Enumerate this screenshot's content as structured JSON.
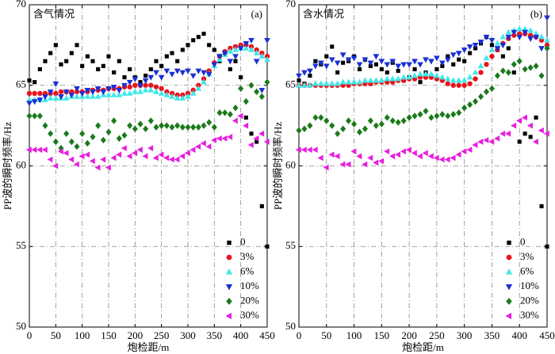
{
  "chart_data": [
    {
      "type": "scatter",
      "annotation": "含气情况",
      "panel_label": "(a)",
      "xlabel": "炮检距/m",
      "ylabel": "PP波的瞬时频率/Hz",
      "x": [
        0,
        10,
        20,
        30,
        40,
        50,
        60,
        70,
        80,
        90,
        100,
        110,
        120,
        130,
        140,
        150,
        160,
        170,
        180,
        190,
        200,
        210,
        220,
        230,
        240,
        250,
        260,
        270,
        280,
        290,
        300,
        310,
        320,
        330,
        340,
        350,
        360,
        370,
        380,
        390,
        400,
        410,
        420,
        430,
        440,
        450
      ],
      "xlim": [
        0,
        450
      ],
      "xticks": [
        0,
        50,
        100,
        150,
        200,
        250,
        300,
        350,
        400,
        450
      ],
      "ylim": [
        50,
        70
      ],
      "yticks": [
        50,
        55,
        60,
        65,
        70
      ],
      "grid": true,
      "legend": "lower right",
      "series": [
        {
          "name": "0",
          "color": "#000000",
          "marker": "square",
          "values": [
            65.3,
            65.2,
            66.0,
            66.5,
            67.0,
            67.5,
            66.3,
            66.5,
            67.0,
            67.5,
            66.2,
            66.8,
            66.5,
            66.0,
            66.2,
            66.8,
            65.8,
            66.5,
            65.5,
            66.0,
            65.5,
            65.2,
            65.6,
            66.0,
            66.5,
            66.2,
            66.8,
            67.0,
            66.5,
            67.2,
            67.5,
            67.8,
            68.0,
            68.2,
            67.5,
            67.2,
            66.5,
            67.0,
            66.0,
            66.5,
            65.5,
            63.0,
            62.0,
            61.5,
            57.5,
            55.0
          ]
        },
        {
          "name": "3%",
          "color": "#e8141c",
          "marker": "circle",
          "values": [
            64.5,
            64.5,
            64.5,
            64.5,
            64.5,
            64.5,
            64.6,
            64.6,
            64.6,
            64.6,
            64.6,
            64.6,
            64.7,
            64.7,
            64.7,
            64.8,
            64.8,
            64.8,
            64.9,
            64.9,
            65.0,
            65.0,
            65.0,
            65.0,
            64.9,
            64.8,
            64.6,
            64.5,
            64.4,
            64.4,
            64.5,
            64.7,
            65.0,
            65.4,
            65.9,
            66.4,
            66.8,
            67.1,
            67.3,
            67.4,
            67.5,
            67.5,
            67.4,
            67.2,
            67.0,
            66.8
          ]
        },
        {
          "name": "6%",
          "color": "#3fe8e8",
          "marker": "triangle-up",
          "values": [
            64.1,
            64.1,
            64.1,
            64.1,
            64.2,
            64.2,
            64.2,
            64.2,
            64.3,
            64.3,
            64.3,
            64.3,
            64.3,
            64.3,
            64.4,
            64.4,
            64.4,
            64.4,
            64.5,
            64.5,
            64.6,
            64.6,
            64.7,
            64.7,
            64.6,
            64.5,
            64.4,
            64.3,
            64.2,
            64.2,
            64.3,
            64.5,
            64.8,
            65.2,
            65.7,
            66.2,
            66.6,
            66.9,
            67.1,
            67.2,
            67.3,
            67.3,
            67.2,
            67.0,
            66.8,
            66.6
          ]
        },
        {
          "name": "10%",
          "color": "#1a2fd6",
          "marker": "triangle-down",
          "values": [
            63.9,
            64.0,
            64.1,
            64.3,
            64.6,
            65.1,
            64.3,
            64.6,
            64.4,
            64.8,
            64.5,
            64.7,
            64.6,
            64.8,
            64.6,
            64.8,
            64.9,
            64.7,
            65.0,
            65.2,
            65.4,
            65.0,
            65.3,
            65.5,
            65.8,
            65.5,
            65.9,
            65.7,
            65.9,
            65.8,
            65.9,
            65.6,
            65.9,
            65.8,
            65.7,
            66.3,
            66.8,
            67.0,
            66.5,
            66.8,
            67.3,
            67.6,
            67.8,
            66.5,
            64.7,
            67.8
          ]
        },
        {
          "name": "20%",
          "color": "#1a7a1a",
          "marker": "diamond",
          "values": [
            63.1,
            63.1,
            63.1,
            62.5,
            62.0,
            61.5,
            61.1,
            62.0,
            61.5,
            61.2,
            62.0,
            61.4,
            61.8,
            62.5,
            61.6,
            62.1,
            62.8,
            61.7,
            61.9,
            62.5,
            62.3,
            62.6,
            62.3,
            62.8,
            62.4,
            62.5,
            62.5,
            62.4,
            62.5,
            62.4,
            62.4,
            62.4,
            62.4,
            62.5,
            62.7,
            62.4,
            63.3,
            63.3,
            63.2,
            63.6,
            64.8,
            64.0,
            65.0,
            64.6,
            64.3,
            65.2
          ]
        },
        {
          "name": "30%",
          "color": "#e81ee0",
          "marker": "triangle-left",
          "values": [
            61.0,
            61.0,
            61.0,
            61.0,
            60.4,
            60.0,
            60.9,
            60.8,
            60.4,
            60.1,
            60.6,
            60.7,
            60.3,
            59.9,
            60.4,
            59.9,
            60.5,
            60.7,
            61.1,
            60.6,
            60.8,
            61.0,
            60.6,
            61.1,
            60.5,
            60.7,
            60.5,
            60.4,
            60.4,
            60.6,
            60.8,
            61.0,
            61.2,
            61.4,
            61.2,
            61.6,
            61.7,
            61.7,
            61.8,
            62.8,
            63.1,
            62.5,
            61.3,
            61.7,
            62.0,
            61.5
          ]
        }
      ]
    },
    {
      "type": "scatter",
      "annotation": "含水情况",
      "panel_label": "(b)",
      "xlabel": "炮检距/m",
      "ylabel": "PP波的瞬时频率/Hz",
      "x": [
        0,
        10,
        20,
        30,
        40,
        50,
        60,
        70,
        80,
        90,
        100,
        110,
        120,
        130,
        140,
        150,
        160,
        170,
        180,
        190,
        200,
        210,
        220,
        230,
        240,
        250,
        260,
        270,
        280,
        290,
        300,
        310,
        320,
        330,
        340,
        350,
        360,
        370,
        380,
        390,
        400,
        410,
        420,
        430,
        440,
        450
      ],
      "xlim": [
        0,
        450
      ],
      "xticks": [
        0,
        50,
        100,
        150,
        200,
        250,
        300,
        350,
        400,
        450
      ],
      "ylim": [
        50,
        70
      ],
      "yticks": [
        50,
        55,
        60,
        65,
        70
      ],
      "grid": true,
      "legend": "lower right",
      "series": [
        {
          "name": "0",
          "color": "#000000",
          "marker": "square",
          "values": [
            65.3,
            65.1,
            65.6,
            66.5,
            66.3,
            66.8,
            67.4,
            65.8,
            66.4,
            66.5,
            66.8,
            66.0,
            66.6,
            66.2,
            66.3,
            66.0,
            65.8,
            66.4,
            65.9,
            65.3,
            65.5,
            66.0,
            65.2,
            65.8,
            65.6,
            66.0,
            66.2,
            66.8,
            66.3,
            66.6,
            66.5,
            67.0,
            67.3,
            67.6,
            68.0,
            67.5,
            67.2,
            66.8,
            67.3,
            65.8,
            61.5,
            62.0,
            61.8,
            63.0,
            57.5,
            55.0
          ]
        },
        {
          "name": "3%",
          "color": "#e8141c",
          "marker": "circle",
          "values": [
            65.0,
            65.0,
            65.0,
            65.0,
            65.0,
            65.0,
            65.0,
            65.0,
            65.0,
            65.0,
            65.1,
            65.1,
            65.1,
            65.1,
            65.2,
            65.2,
            65.2,
            65.2,
            65.3,
            65.3,
            65.4,
            65.4,
            65.5,
            65.5,
            65.5,
            65.4,
            65.3,
            65.1,
            65.0,
            65.0,
            65.0,
            65.1,
            65.4,
            65.8,
            66.3,
            66.8,
            67.2,
            67.6,
            67.9,
            68.1,
            68.2,
            68.2,
            68.1,
            68.0,
            67.8,
            67.5
          ]
        },
        {
          "name": "6%",
          "color": "#3fe8e8",
          "marker": "triangle-up",
          "values": [
            65.0,
            65.0,
            65.0,
            65.1,
            65.1,
            65.1,
            65.1,
            65.1,
            65.2,
            65.2,
            65.2,
            65.2,
            65.3,
            65.3,
            65.3,
            65.3,
            65.4,
            65.4,
            65.4,
            65.5,
            65.5,
            65.6,
            65.7,
            65.7,
            65.7,
            65.6,
            65.5,
            65.4,
            65.3,
            65.3,
            65.3,
            65.5,
            65.8,
            66.2,
            66.7,
            67.2,
            67.6,
            68.0,
            68.3,
            68.4,
            68.5,
            68.5,
            68.4,
            68.2,
            68.0,
            67.8
          ]
        },
        {
          "name": "10%",
          "color": "#1a2fd6",
          "marker": "triangle-down",
          "values": [
            65.6,
            65.8,
            65.9,
            66.2,
            66.4,
            66.2,
            66.6,
            66.4,
            66.9,
            66.6,
            66.7,
            66.3,
            66.6,
            66.4,
            66.8,
            66.5,
            66.3,
            66.5,
            66.2,
            66.3,
            66.3,
            66.5,
            66.3,
            66.6,
            66.5,
            66.7,
            66.4,
            66.6,
            66.9,
            67.0,
            67.2,
            67.4,
            67.5,
            67.7,
            68.0,
            67.8,
            67.3,
            67.5,
            68.0,
            68.3,
            68.0,
            68.3,
            67.9,
            68.0,
            67.3,
            69.2
          ]
        },
        {
          "name": "20%",
          "color": "#1a7a1a",
          "marker": "diamond",
          "values": [
            62.2,
            62.3,
            62.5,
            63.0,
            63.0,
            62.8,
            62.5,
            62.0,
            62.3,
            62.8,
            62.6,
            62.1,
            62.3,
            62.8,
            62.5,
            62.6,
            63.0,
            62.8,
            62.7,
            62.8,
            63.0,
            63.1,
            63.2,
            63.4,
            63.0,
            63.1,
            63.2,
            63.1,
            63.2,
            63.3,
            63.6,
            63.8,
            64.0,
            64.3,
            64.6,
            64.8,
            65.6,
            65.9,
            65.8,
            66.3,
            66.5,
            66.0,
            66.1,
            66.2,
            65.6,
            67.3
          ]
        },
        {
          "name": "30%",
          "color": "#e81ee0",
          "marker": "triangle-left",
          "values": [
            61.0,
            61.0,
            61.0,
            61.0,
            60.5,
            59.9,
            60.7,
            60.6,
            60.1,
            60.1,
            60.9,
            60.6,
            60.1,
            60.5,
            60.2,
            60.3,
            60.9,
            60.6,
            60.7,
            60.9,
            61.0,
            60.8,
            60.6,
            60.8,
            60.6,
            60.5,
            60.4,
            60.4,
            60.5,
            60.7,
            60.9,
            61.0,
            61.3,
            61.5,
            61.6,
            61.5,
            61.7,
            62.0,
            62.0,
            62.5,
            62.8,
            63.0,
            62.5,
            61.5,
            62.2,
            62.0
          ]
        }
      ]
    }
  ]
}
